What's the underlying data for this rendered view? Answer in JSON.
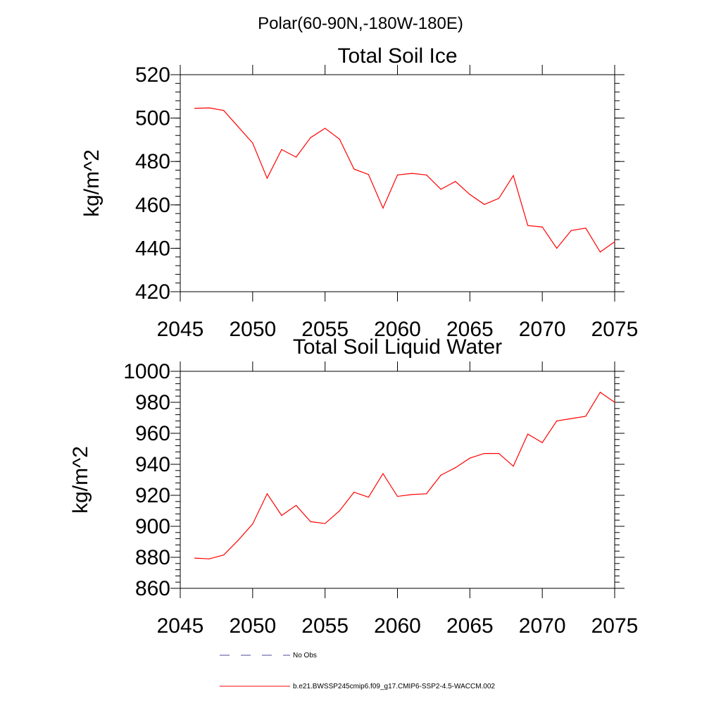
{
  "figure_title": "Polar(60-90N,-180W-180E)",
  "colors": {
    "series": "#ff0000",
    "obs": "#4a4a9a",
    "axis": "#000000"
  },
  "legend": {
    "obs_label": "No Obs",
    "model_label": "b.e21.BWSSP245cmip6.f09_g17.CMIP6-SSP2-4.5-WACCM.002"
  },
  "chart_data": [
    {
      "type": "line",
      "title": "Total Soil Ice",
      "xlabel": "",
      "ylabel": "kg/m^2",
      "xlim": [
        2045,
        2075
      ],
      "ylim": [
        420,
        520
      ],
      "xticks": [
        2045,
        2050,
        2055,
        2060,
        2065,
        2070,
        2075
      ],
      "yticks": [
        420,
        440,
        460,
        480,
        500,
        520
      ],
      "x": [
        2046,
        2047,
        2048,
        2049,
        2050,
        2051,
        2052,
        2053,
        2054,
        2055,
        2056,
        2057,
        2058,
        2059,
        2060,
        2061,
        2062,
        2063,
        2064,
        2065,
        2066,
        2067,
        2068,
        2069,
        2070,
        2071,
        2072,
        2073,
        2074,
        2075
      ],
      "series": [
        {
          "name": "b.e21.BWSSP245cmip6.f09_g17.CMIP6-SSP2-4.5-WACCM.002",
          "values": [
            504.5,
            504.7,
            503.5,
            496,
            488.5,
            472.3,
            485.5,
            482,
            491,
            495.3,
            490.3,
            476.5,
            474,
            458.5,
            473.8,
            474.5,
            473.8,
            467.2,
            470.8,
            464.8,
            460.2,
            463,
            473.5,
            450.5,
            449.8,
            440,
            448.2,
            449.3,
            438.3,
            443
          ]
        }
      ]
    },
    {
      "type": "line",
      "title": "Total Soil Liquid Water",
      "xlabel": "",
      "ylabel": "kg/m^2",
      "xlim": [
        2045,
        2075
      ],
      "ylim": [
        860,
        1000
      ],
      "xticks": [
        2045,
        2050,
        2055,
        2060,
        2065,
        2070,
        2075
      ],
      "yticks": [
        860,
        880,
        900,
        920,
        940,
        960,
        980,
        1000
      ],
      "x": [
        2046,
        2047,
        2048,
        2049,
        2050,
        2051,
        2052,
        2053,
        2054,
        2055,
        2056,
        2057,
        2058,
        2059,
        2060,
        2061,
        2062,
        2063,
        2064,
        2065,
        2066,
        2067,
        2068,
        2069,
        2070,
        2071,
        2072,
        2073,
        2074,
        2075
      ],
      "series": [
        {
          "name": "b.e21.BWSSP245cmip6.f09_g17.CMIP6-SSP2-4.5-WACCM.002",
          "values": [
            879.5,
            879,
            881.5,
            891,
            901.5,
            921,
            907,
            913.5,
            903,
            901.8,
            910,
            922,
            918.8,
            934,
            919.3,
            920.5,
            921,
            933,
            937.8,
            944,
            947,
            947,
            938.8,
            959.5,
            954,
            968,
            969.5,
            971,
            986.5,
            980
          ]
        }
      ]
    }
  ]
}
